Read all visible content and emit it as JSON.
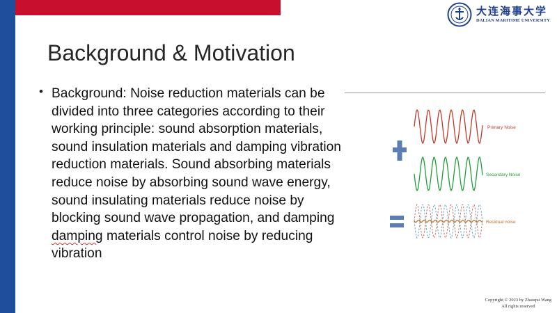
{
  "logo": {
    "name_cn": "大连海事大学",
    "name_en": "DALIAN MARITIME UNIVERSITY"
  },
  "slide": {
    "title": "Background & Motivation",
    "bullet_pre": "Background: Noise reduction materials can be divided into three categories according to their working principle: sound absorption materials, sound insulation materials and damping vibration reduction materials. Sound absorbing materials reduce noise by absorbing sound wave energy, sound insulating materials reduce noise by blocking sound wave propagation, and damping ",
    "bullet_flagged": "damping",
    "bullet_post": " materials control noise by reducing vibration"
  },
  "diagram": {
    "primary_label": "Primary Noise",
    "secondary_label": "Secondary Noise",
    "residual_label": "Residual noise",
    "plus_symbol": "+",
    "equals_symbol": "=",
    "colors": {
      "primary": "#c0392b",
      "secondary": "#1e9e3a",
      "residual": "#c8702a",
      "residual_red_dash": "#d46a6a",
      "residual_teal_dash": "#6aa8b8",
      "operator": "#5b7db6"
    }
  },
  "footer": {
    "copyright_line1": "Copyright © 2023 by Zhaoqui Wang",
    "copyright_line2": "All rights reserved"
  },
  "theme": {
    "left_bar": "#1f4e9a",
    "top_bar": "#c8102e"
  }
}
